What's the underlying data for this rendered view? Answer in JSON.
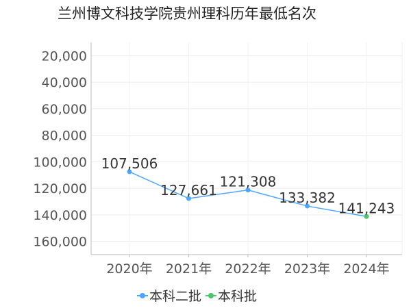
{
  "chart_data": {
    "type": "line",
    "title": "兰州博文科技学院贵州理科历年最低名次",
    "xlabel": "",
    "ylabel": "",
    "categories": [
      "2020年",
      "2021年",
      "2022年",
      "2023年",
      "2024年"
    ],
    "y_axis": {
      "reversed": true,
      "min": 10000,
      "max": 170000,
      "ticks": [
        20000,
        40000,
        60000,
        80000,
        100000,
        120000,
        140000,
        160000
      ],
      "tick_labels": [
        "20,000",
        "40,000",
        "60,000",
        "80,000",
        "100,000",
        "120,000",
        "140,000",
        "160,000"
      ]
    },
    "grid": true,
    "legend_position": "bottom",
    "series": [
      {
        "name": "本科二批",
        "color": "#4da6ff",
        "points": [
          {
            "category": "2020年",
            "value": 107506,
            "label": "107,506"
          },
          {
            "category": "2021年",
            "value": 127661,
            "label": "127,661"
          },
          {
            "category": "2022年",
            "value": 121308,
            "label": "121,308"
          },
          {
            "category": "2023年",
            "value": 133382,
            "label": "133,382"
          }
        ]
      },
      {
        "name": "本科批",
        "color": "#4cc46a",
        "points": [
          {
            "category": "2024年",
            "value": 141243,
            "label": "141,243"
          }
        ]
      }
    ]
  }
}
